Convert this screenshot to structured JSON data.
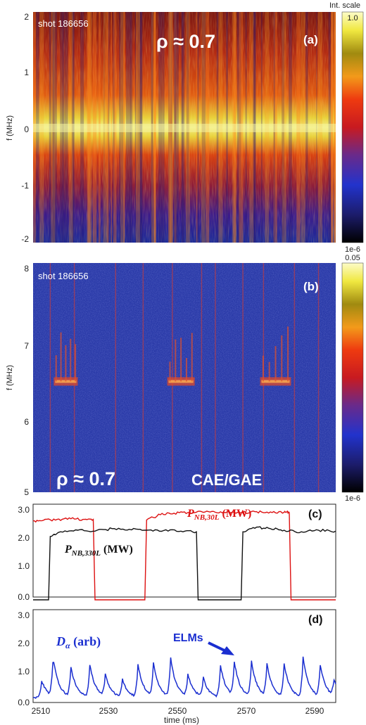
{
  "panel_a": {
    "shot": "shot 186656",
    "rho": "ρ ≈ 0.7",
    "tag": "(a)",
    "ylabel": "f (MHz)",
    "yticks": [
      "2",
      "1",
      "0",
      "-1",
      "-2"
    ],
    "colorbar_title": "Int. scale",
    "colorbar_max": "1.0",
    "colorbar_min": "1e-6"
  },
  "panel_b": {
    "shot": "shot 186656",
    "rho": "ρ ≈ 0.7",
    "tag": "(b)",
    "mode_label": "CAE/GAE",
    "ylabel": "f (MHz)",
    "yticks": [
      "8",
      "7",
      "6",
      "5"
    ],
    "colorbar_max": "0.05",
    "colorbar_min": "1e-6"
  },
  "panel_c": {
    "tag": "(c)",
    "label_red": "P",
    "label_red_sub": "NB,30L",
    "label_red_unit": " (MW)",
    "label_black": "P",
    "label_black_sub": "NB,330L",
    "label_black_unit": " (MW)",
    "yticks": [
      "3.0",
      "2.0",
      "1.0",
      "0.0"
    ]
  },
  "panel_d": {
    "tag": "(d)",
    "label": "D",
    "label_sub": "α",
    "label_unit": " (arb)",
    "elm_label": "ELMs",
    "yticks": [
      "3.0",
      "2.0",
      "1.0",
      "0.0"
    ]
  },
  "xaxis": {
    "label": "time (ms)",
    "ticks": [
      "2510",
      "2530",
      "2550",
      "2570",
      "2590"
    ]
  },
  "colors": {
    "red_trace": "#dd1111",
    "black_trace": "#111111",
    "blue_trace": "#1a2ed0",
    "spectrogram_bg_b": "#2a3aa8"
  },
  "chart_data": [
    {
      "type": "heatmap",
      "panel": "(a)",
      "ylabel": "f (MHz)",
      "xlim": [
        2507,
        2595
      ],
      "ylim": [
        -2,
        2
      ],
      "colorbar_range": [
        1e-06,
        1.0
      ],
      "colorbar_label": "Int. scale",
      "annotation": "ρ ≈ 0.7",
      "shot": "shot 186656",
      "bright_band_f_mhz": 0
    },
    {
      "type": "heatmap",
      "panel": "(b)",
      "ylabel": "f (MHz)",
      "xlim": [
        2507,
        2595
      ],
      "ylim": [
        5,
        8
      ],
      "colorbar_range": [
        1e-06,
        0.05
      ],
      "annotation": [
        "ρ ≈ 0.7",
        "CAE/GAE"
      ],
      "shot": "shot 186656",
      "mode_bursts": [
        {
          "t_start": 2513,
          "t_end": 2520,
          "f_center": 6.45
        },
        {
          "t_start": 2546,
          "t_end": 2554,
          "f_center": 6.45
        },
        {
          "t_start": 2573,
          "t_end": 2582,
          "f_center": 6.45
        }
      ]
    },
    {
      "type": "line",
      "panel": "(c)",
      "xlim": [
        2507,
        2595
      ],
      "ylim": [
        0,
        3
      ],
      "series": [
        {
          "name": "P_NB,30L (MW)",
          "x": [
            2507,
            2510,
            2514,
            2518,
            2522,
            2524.5,
            2525,
            2539.5,
            2540,
            2544,
            2548,
            2552,
            2556,
            2560,
            2564,
            2568,
            2572,
            2576,
            2580,
            2581.5,
            2582,
            2595
          ],
          "y": [
            2.55,
            2.57,
            2.6,
            2.62,
            2.6,
            2.6,
            0.0,
            0.0,
            2.58,
            2.75,
            2.8,
            2.82,
            2.85,
            2.83,
            2.84,
            2.82,
            2.85,
            2.84,
            2.83,
            2.82,
            0.0,
            0.0
          ]
        },
        {
          "name": "P_NB,330L (MW)",
          "x": [
            2507,
            2511.5,
            2512,
            2515,
            2520,
            2525,
            2530,
            2535,
            2540,
            2545,
            2550,
            2554.5,
            2555,
            2567.5,
            2568,
            2572,
            2576,
            2580,
            2585,
            2590,
            2595
          ],
          "y": [
            0.0,
            0.0,
            2.05,
            2.2,
            2.25,
            2.22,
            2.3,
            2.28,
            2.25,
            2.24,
            2.22,
            2.2,
            0.0,
            0.0,
            2.2,
            2.35,
            2.3,
            2.25,
            2.2,
            2.25,
            2.22
          ]
        }
      ]
    },
    {
      "type": "line",
      "panel": "(d)",
      "xlim": [
        2507,
        2595
      ],
      "ylim": [
        0,
        3
      ],
      "annotation": "ELMs",
      "series": [
        {
          "name": "D_α (arb)",
          "peaks": [
            {
              "t": 2509.5,
              "v": 0.8
            },
            {
              "t": 2512.8,
              "v": 1.5
            },
            {
              "t": 2518.0,
              "v": 1.2
            },
            {
              "t": 2523.5,
              "v": 1.3
            },
            {
              "t": 2528.0,
              "v": 0.95
            },
            {
              "t": 2533.0,
              "v": 0.8
            },
            {
              "t": 2537.5,
              "v": 1.3
            },
            {
              "t": 2542.0,
              "v": 1.3
            },
            {
              "t": 2547.0,
              "v": 1.5
            },
            {
              "t": 2552.0,
              "v": 0.95
            },
            {
              "t": 2556.5,
              "v": 0.85
            },
            {
              "t": 2561.5,
              "v": 1.25
            },
            {
              "t": 2565.5,
              "v": 1.35
            },
            {
              "t": 2570.5,
              "v": 1.4
            },
            {
              "t": 2575.0,
              "v": 1.3
            },
            {
              "t": 2580.0,
              "v": 1.3
            },
            {
              "t": 2585.5,
              "v": 1.55
            },
            {
              "t": 2590.5,
              "v": 1.25
            },
            {
              "t": 2594.5,
              "v": 0.75
            }
          ],
          "baseline": 0.25
        }
      ]
    }
  ]
}
